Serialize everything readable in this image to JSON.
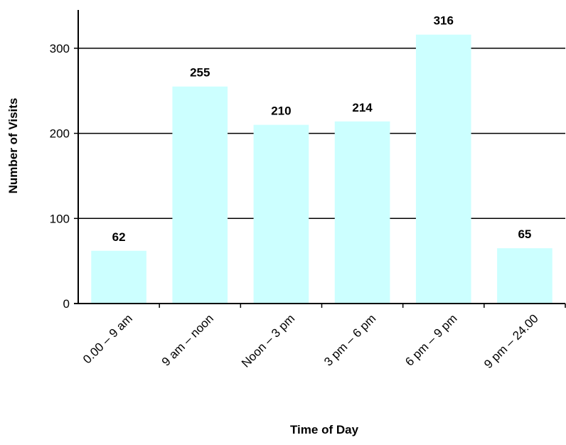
{
  "chart_data": {
    "type": "bar",
    "title": "",
    "xlabel": "Time of Day",
    "ylabel": "Number of Visits",
    "categories": [
      "0.00 – 9 am",
      "9 am – noon",
      "Noon – 3 pm",
      "3 pm – 6 pm",
      "6 pm – 9 pm",
      "9 pm – 24.00"
    ],
    "values": [
      62,
      255,
      210,
      214,
      316,
      65
    ],
    "ylim": [
      0,
      345
    ],
    "yticks": [
      0,
      100,
      200,
      300
    ],
    "grid": true,
    "legend": "none",
    "bar_color": "#ccffff"
  }
}
